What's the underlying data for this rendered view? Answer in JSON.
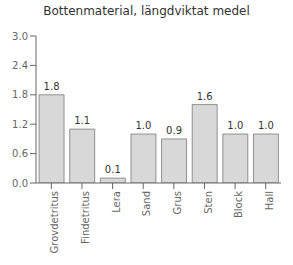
{
  "chart_data": {
    "type": "bar",
    "title": "Bottenmaterial, längdviktat medel",
    "categories": [
      "Grovdetritus",
      "Findetritus",
      "Lera",
      "Sand",
      "Grus",
      "Sten",
      "Block",
      "Hall"
    ],
    "values": [
      1.8,
      1.1,
      0.1,
      1.0,
      0.9,
      1.6,
      1.0,
      1.0
    ],
    "value_labels": [
      "1.8",
      "1.1",
      "0.1",
      "1.0",
      "0.9",
      "1.6",
      "1.0",
      "1.0"
    ],
    "color": "#d8d8d8",
    "ylim": [
      0,
      3
    ],
    "yticks": [
      {
        "value": 0,
        "label": "0.0"
      },
      0.6,
      1.2,
      1.8,
      2.4,
      {
        "value": 3,
        "label": "3.0"
      }
    ],
    "data_labels": true,
    "grid": false
  }
}
